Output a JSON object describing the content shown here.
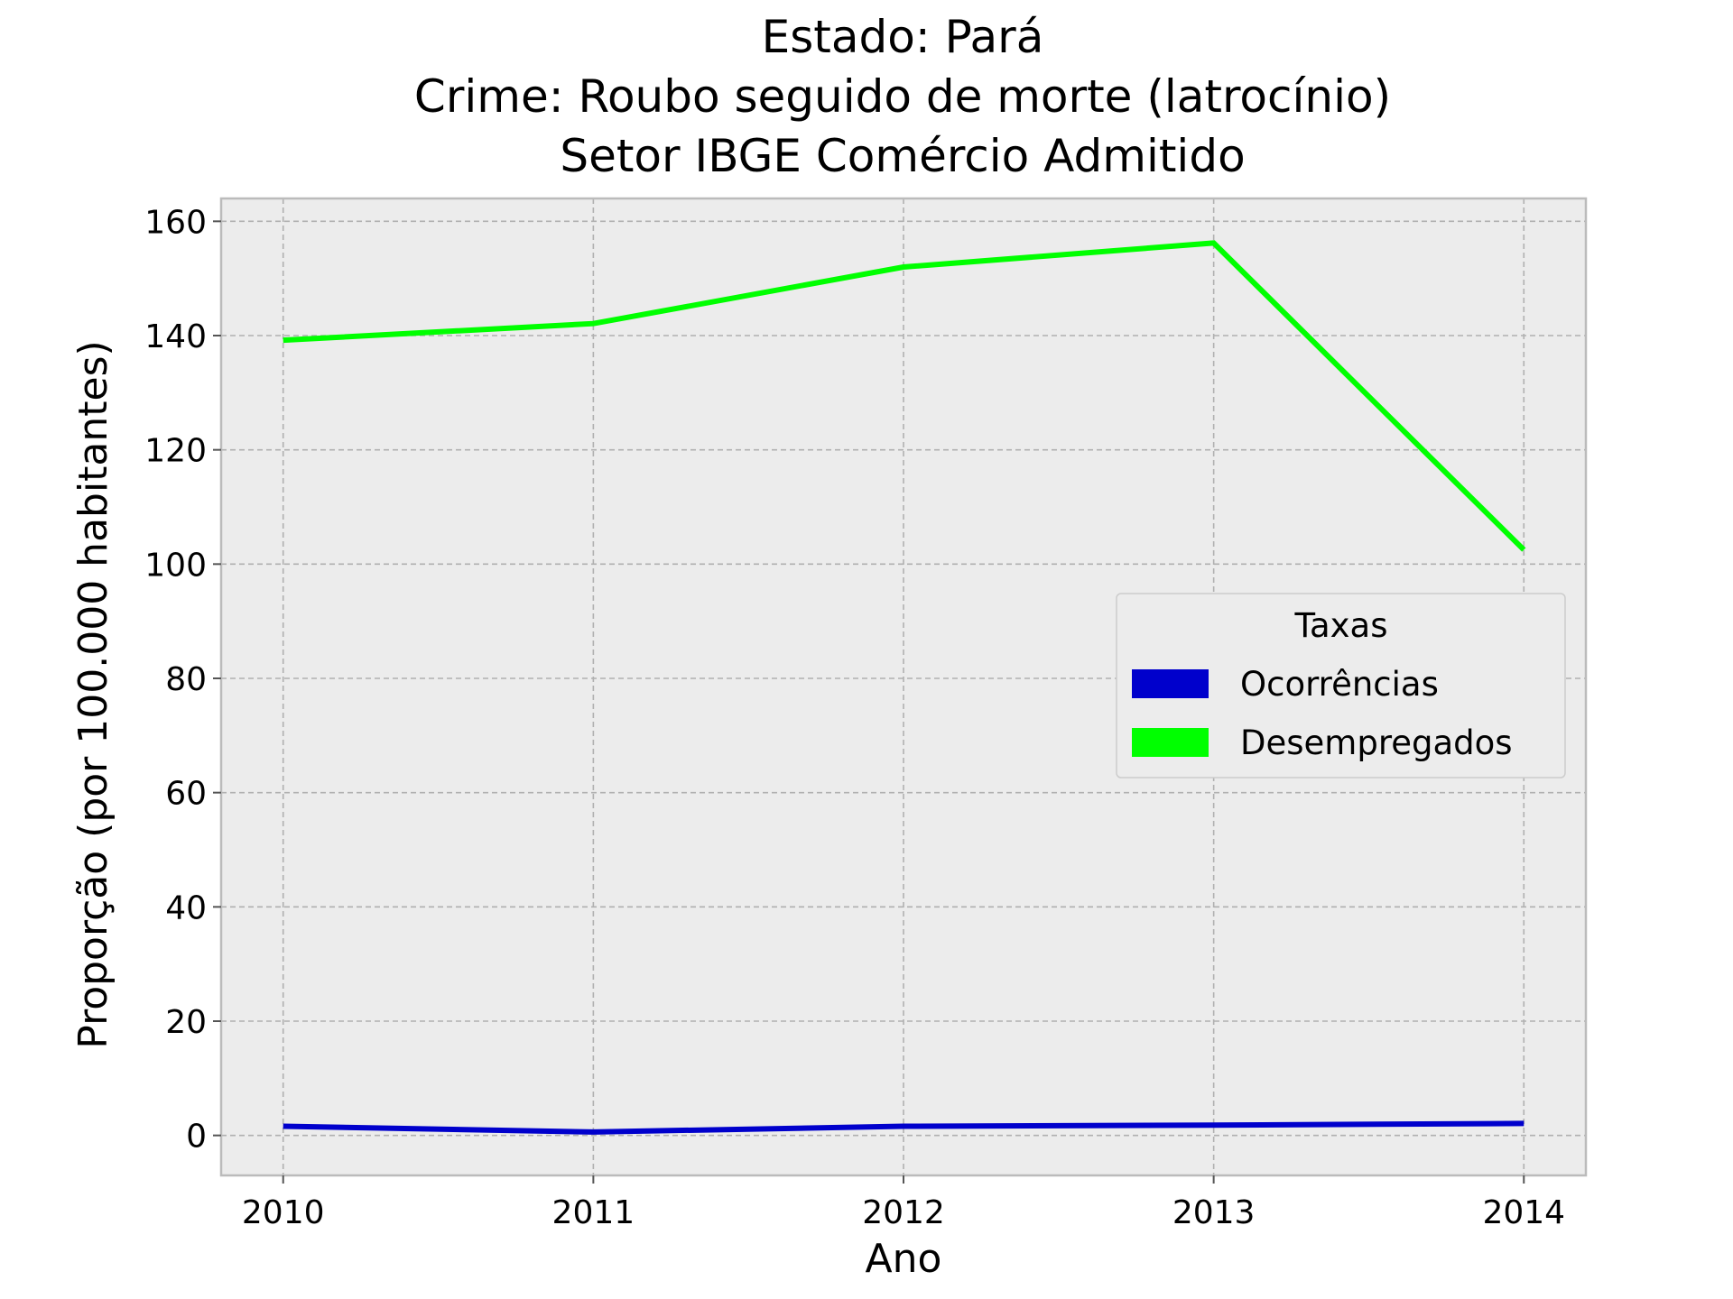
{
  "chart_data": {
    "type": "line",
    "title_lines": [
      "Estado: Pará",
      "Crime: Roubo seguido de morte (latrocínio)",
      "Setor IBGE  Comércio   Admitido"
    ],
    "xlabel": "Ano",
    "ylabel": "Proporção (por 100.000 habitantes)",
    "x": [
      2010,
      2011,
      2012,
      2013,
      2014
    ],
    "x_tick_labels": [
      "2010",
      "2011",
      "2012",
      "2013",
      "2014"
    ],
    "y_ticks": [
      0,
      20,
      40,
      60,
      80,
      100,
      120,
      140,
      160
    ],
    "y_tick_labels": [
      "0",
      "20",
      "40",
      "60",
      "80",
      "100",
      "120",
      "140",
      "160"
    ],
    "xlim": [
      2009.8,
      2014.2
    ],
    "ylim": [
      -7,
      164
    ],
    "grid": true,
    "legend": {
      "title": "Taxas",
      "position": "center-right"
    },
    "series": [
      {
        "name": "Ocorrências",
        "color": "#0000cc",
        "values": [
          1.6,
          0.6,
          1.6,
          1.8,
          2.1
        ]
      },
      {
        "name": "Desempregados",
        "color": "#00ff00",
        "values": [
          139.2,
          142.1,
          152.0,
          156.2,
          102.5
        ]
      }
    ],
    "colors": {
      "plot_background": "#ececec",
      "frame": "#bbbbbb"
    }
  }
}
